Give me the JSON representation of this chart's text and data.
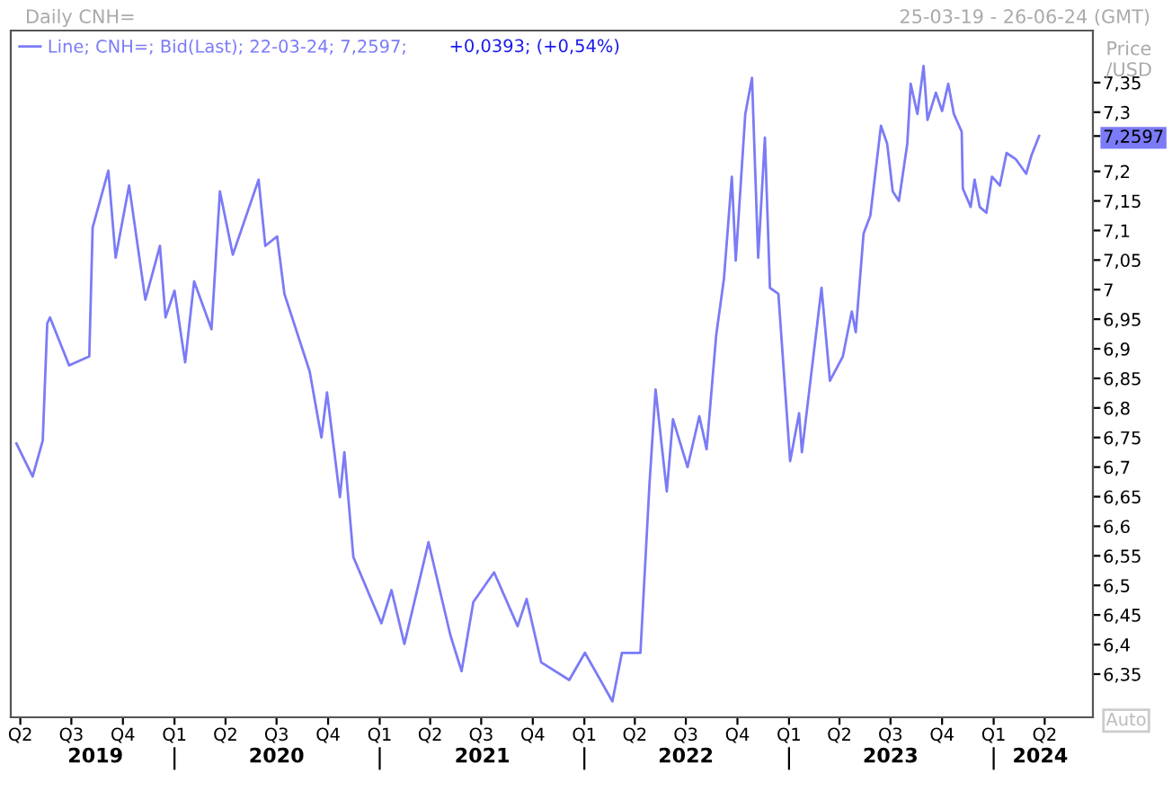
{
  "chart_data": {
    "type": "line",
    "title": "Daily CNH=",
    "subtitle": "25-03-19 - 26-06-24 (GMT)",
    "ylabel": "Price\n/USD",
    "annotations": [
      "+0,0393; (+0,54%)",
      "Auto"
    ],
    "legend": "top left",
    "marker": "none",
    "line_style": "solid",
    "grid": false,
    "series": [
      {
        "name": "Line; CNH=; Bid(Last); 22-03-24; 7,2597;",
        "color": "#7b7bf7",
        "x": [
          "2019-03-25",
          "2019-04-23",
          "2019-05-11",
          "2019-05-19",
          "2019-05-24",
          "2019-06-27",
          "2019-08-02",
          "2019-08-08",
          "2019-09-05",
          "2019-09-18",
          "2019-10-12",
          "2019-11-10",
          "2019-12-06",
          "2019-12-16",
          "2020-01-01",
          "2020-01-20",
          "2020-02-05",
          "2020-03-07",
          "2020-03-22",
          "2020-04-14",
          "2020-05-30",
          "2020-06-11",
          "2020-07-02",
          "2020-07-15",
          "2020-08-29",
          "2020-09-19",
          "2020-09-29",
          "2020-10-22",
          "2020-10-30",
          "2020-11-15",
          "2021-01-04",
          "2021-01-22",
          "2021-02-14",
          "2021-03-29",
          "2021-05-07",
          "2021-05-27",
          "2021-06-17",
          "2021-07-24",
          "2021-09-04",
          "2021-09-20",
          "2021-10-16",
          "2021-12-05",
          "2022-01-02",
          "2022-02-20",
          "2022-03-09",
          "2022-04-11",
          "2022-04-27",
          "2022-05-08",
          "2022-05-28",
          "2022-06-08",
          "2022-07-04",
          "2022-07-25",
          "2022-08-07",
          "2022-08-24",
          "2022-09-07",
          "2022-09-21",
          "2022-09-28",
          "2022-10-15",
          "2022-10-27",
          "2022-11-07",
          "2022-11-19",
          "2022-11-28",
          "2022-12-13",
          "2023-01-03",
          "2023-01-19",
          "2023-01-24",
          "2023-02-14",
          "2023-02-28",
          "2023-03-15",
          "2023-04-07",
          "2023-04-23",
          "2023-04-30",
          "2023-05-14",
          "2023-05-26",
          "2023-06-14",
          "2023-06-25",
          "2023-07-05",
          "2023-07-16",
          "2023-07-31",
          "2023-08-06",
          "2023-08-18",
          "2023-08-29",
          "2023-09-05",
          "2023-09-20",
          "2023-10-01",
          "2023-10-12",
          "2023-10-22",
          "2023-11-05",
          "2023-11-07",
          "2023-11-21",
          "2023-11-28",
          "2023-12-07",
          "2023-12-19",
          "2023-12-29",
          "2024-01-12",
          "2024-01-24",
          "2024-02-09",
          "2024-02-28",
          "2024-03-08",
          "2024-03-22"
        ],
        "values": [
          6.74,
          6.684,
          6.745,
          6.943,
          6.953,
          6.872,
          6.887,
          7.105,
          7.201,
          7.054,
          7.176,
          6.983,
          7.074,
          6.953,
          6.998,
          6.877,
          7.014,
          6.933,
          7.166,
          7.059,
          7.186,
          7.074,
          7.09,
          6.993,
          6.862,
          6.75,
          6.826,
          6.649,
          6.725,
          6.548,
          6.436,
          6.492,
          6.401,
          6.573,
          6.416,
          6.355,
          6.472,
          6.522,
          6.431,
          6.477,
          6.37,
          6.34,
          6.386,
          6.304,
          6.386,
          6.386,
          6.669,
          6.831,
          6.659,
          6.781,
          6.7,
          6.786,
          6.73,
          6.922,
          7.019,
          7.191,
          7.049,
          7.297,
          7.358,
          7.054,
          7.257,
          7.003,
          6.993,
          6.71,
          6.791,
          6.725,
          6.892,
          7.003,
          6.846,
          6.887,
          6.963,
          6.928,
          7.095,
          7.125,
          7.277,
          7.247,
          7.166,
          7.15,
          7.247,
          7.348,
          7.297,
          7.378,
          7.287,
          7.333,
          7.302,
          7.348,
          7.297,
          7.267,
          7.171,
          7.14,
          7.186,
          7.14,
          7.13,
          7.191,
          7.176,
          7.231,
          7.221,
          7.196,
          7.226,
          7.2597
        ]
      }
    ],
    "xlim": [
      "2019-03-15",
      "2024-06-26"
    ],
    "xticks": [
      {
        "value": "2019-04-01",
        "label": "Q2"
      },
      {
        "value": "2019-07-01",
        "label": "Q3"
      },
      {
        "value": "2019-10-01",
        "label": "Q4"
      },
      {
        "value": "2020-01-01",
        "label": "Q1"
      },
      {
        "value": "2020-04-01",
        "label": "Q2"
      },
      {
        "value": "2020-07-01",
        "label": "Q3"
      },
      {
        "value": "2020-10-01",
        "label": "Q4"
      },
      {
        "value": "2021-01-01",
        "label": "Q1"
      },
      {
        "value": "2021-04-01",
        "label": "Q2"
      },
      {
        "value": "2021-07-01",
        "label": "Q3"
      },
      {
        "value": "2021-10-01",
        "label": "Q4"
      },
      {
        "value": "2022-01-01",
        "label": "Q1"
      },
      {
        "value": "2022-04-01",
        "label": "Q2"
      },
      {
        "value": "2022-07-01",
        "label": "Q3"
      },
      {
        "value": "2022-10-01",
        "label": "Q4"
      },
      {
        "value": "2023-01-01",
        "label": "Q1"
      },
      {
        "value": "2023-04-01",
        "label": "Q2"
      },
      {
        "value": "2023-07-01",
        "label": "Q3"
      },
      {
        "value": "2023-10-01",
        "label": "Q4"
      },
      {
        "value": "2024-01-01",
        "label": "Q1"
      },
      {
        "value": "2024-04-01",
        "label": "Q2"
      }
    ],
    "x2lim": [
      "2019-03-15",
      "2024-06-26"
    ],
    "x2ticks": [
      {
        "value": "2019-08-13",
        "label": "2019"
      },
      {
        "value": "2020-01-01",
        "label": null
      },
      {
        "value": "2020-07-01",
        "label": "2020"
      },
      {
        "value": "2021-01-01",
        "label": null
      },
      {
        "value": "2021-07-03",
        "label": "2021"
      },
      {
        "value": "2022-01-01",
        "label": null
      },
      {
        "value": "2022-07-01",
        "label": "2022"
      },
      {
        "value": "2023-01-01",
        "label": null
      },
      {
        "value": "2023-07-01",
        "label": "2023"
      },
      {
        "value": "2024-01-01",
        "label": null
      },
      {
        "value": "2024-03-24",
        "label": "2024"
      }
    ],
    "ylim": [
      6.277,
      7.438
    ],
    "yticks": [
      {
        "value": 6.35,
        "label": "6,35"
      },
      {
        "value": 6.4,
        "label": "6,4"
      },
      {
        "value": 6.45,
        "label": "6,45"
      },
      {
        "value": 6.5,
        "label": "6,5"
      },
      {
        "value": 6.55,
        "label": "6,55"
      },
      {
        "value": 6.6,
        "label": "6,6"
      },
      {
        "value": 6.65,
        "label": "6,65"
      },
      {
        "value": 6.7,
        "label": "6,7"
      },
      {
        "value": 6.75,
        "label": "6,75"
      },
      {
        "value": 6.8,
        "label": "6,8"
      },
      {
        "value": 6.85,
        "label": "6,85"
      },
      {
        "value": 6.9,
        "label": "6,9"
      },
      {
        "value": 6.95,
        "label": "6,95"
      },
      {
        "value": 7,
        "label": "7"
      },
      {
        "value": 7.05,
        "label": "7,05"
      },
      {
        "value": 7.1,
        "label": "7,1"
      },
      {
        "value": 7.15,
        "label": "7,15"
      },
      {
        "value": 7.2,
        "label": "7,2"
      },
      {
        "value": 7.2597,
        "label": "7,2597"
      },
      {
        "value": 7.3,
        "label": "7,3"
      },
      {
        "value": 7.35,
        "label": "7,35"
      }
    ]
  }
}
